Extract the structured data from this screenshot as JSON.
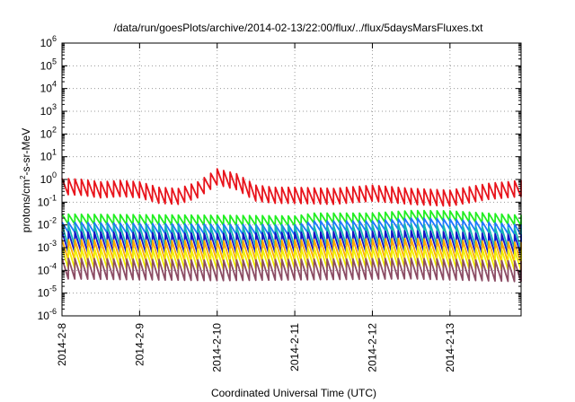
{
  "chart_data": {
    "type": "line",
    "title": "/data/run/goesPlots/archive/2014-02-13/22:00/flux/../flux/5daysMarsFluxes.txt",
    "xlabel": "Coordinated Universal Time (UTC)",
    "ylabel": "protons/cm²-s-sr-MeV",
    "ylabel_parts": {
      "base": "protons/cm",
      "sup": "2",
      "rest": "-s-sr-MeV"
    },
    "yscale": "log",
    "ylim": [
      1e-06,
      1000000.0
    ],
    "y_ticks": [
      {
        "mantissa": "10",
        "exp": "-6"
      },
      {
        "mantissa": "10",
        "exp": "-5"
      },
      {
        "mantissa": "10",
        "exp": "-4"
      },
      {
        "mantissa": "10",
        "exp": "-3"
      },
      {
        "mantissa": "10",
        "exp": "-2"
      },
      {
        "mantissa": "10",
        "exp": "-1"
      },
      {
        "mantissa": "10",
        "exp": "0"
      },
      {
        "mantissa": "10",
        "exp": "1"
      },
      {
        "mantissa": "10",
        "exp": "2"
      },
      {
        "mantissa": "10",
        "exp": "3"
      },
      {
        "mantissa": "10",
        "exp": "4"
      },
      {
        "mantissa": "10",
        "exp": "5"
      },
      {
        "mantissa": "10",
        "exp": "6"
      }
    ],
    "xlim": [
      "2014-02-08",
      "2014-02-13 22:00"
    ],
    "x_ticks": [
      "2014-2-8",
      "2014-2-9",
      "2014-2-10",
      "2014-2-11",
      "2014-2-12",
      "2014-2-13"
    ],
    "grid": true,
    "series": [
      {
        "color": "#e8141c",
        "pattern": "sawtooth",
        "period_hours": 2,
        "x": [
          "2014-02-08 00:00",
          "2014-02-08 06:00",
          "2014-02-08 12:00",
          "2014-02-08 18:00",
          "2014-02-09 00:00",
          "2014-02-09 06:00",
          "2014-02-09 12:00",
          "2014-02-09 18:00",
          "2014-02-10 00:00",
          "2014-02-10 06:00",
          "2014-02-10 12:00",
          "2014-02-10 18:00",
          "2014-02-11 00:00",
          "2014-02-11 12:00",
          "2014-02-12 00:00",
          "2014-02-12 12:00",
          "2014-02-13 00:00",
          "2014-02-13 12:00",
          "2014-02-13 22:00"
        ],
        "y": [
          0.5,
          0.45,
          0.35,
          0.4,
          0.35,
          0.2,
          0.18,
          0.35,
          1.3,
          0.8,
          0.25,
          0.2,
          0.2,
          0.18,
          0.25,
          0.18,
          0.15,
          0.3,
          0.4
        ]
      },
      {
        "color": "#22ee22",
        "pattern": "sawtooth",
        "period_hours": 2,
        "x": [
          "2014-02-08 00:00",
          "2014-02-09 00:00",
          "2014-02-10 00:00",
          "2014-02-11 00:00",
          "2014-02-11 06:00",
          "2014-02-12 00:00",
          "2014-02-12 12:00",
          "2014-02-13 00:00",
          "2014-02-13 22:00"
        ],
        "y": [
          0.018,
          0.017,
          0.016,
          0.015,
          0.02,
          0.02,
          0.026,
          0.025,
          0.016
        ]
      },
      {
        "color": "#1e78ff",
        "pattern": "sawtooth",
        "period_hours": 2,
        "x": [
          "2014-02-08 00:00",
          "2014-02-09 00:00",
          "2014-02-10 00:00",
          "2014-02-11 00:00",
          "2014-02-11 06:00",
          "2014-02-12 00:00",
          "2014-02-12 12:00",
          "2014-02-13 00:00",
          "2014-02-13 22:00"
        ],
        "y": [
          0.008,
          0.007,
          0.0065,
          0.006,
          0.009,
          0.009,
          0.012,
          0.011,
          0.006
        ]
      },
      {
        "color": "#14b4b4",
        "pattern": "sawtooth",
        "period_hours": 2,
        "x": [
          "2014-02-08 00:00",
          "2014-02-10 00:00",
          "2014-02-11 06:00",
          "2014-02-12 12:00",
          "2014-02-13 22:00"
        ],
        "y": [
          0.0035,
          0.003,
          0.0032,
          0.004,
          0.0025
        ]
      },
      {
        "color": "#1414c8",
        "pattern": "sawtooth",
        "period_hours": 2,
        "x": [
          "2014-02-08 00:00",
          "2014-02-10 00:00",
          "2014-02-11 06:00",
          "2014-02-12 12:00",
          "2014-02-13 22:00"
        ],
        "y": [
          0.0018,
          0.0015,
          0.0017,
          0.002,
          0.0013
        ]
      },
      {
        "color": "#ffaa00",
        "pattern": "sawtooth",
        "period_hours": 2,
        "x": [
          "2014-02-08 00:00",
          "2014-02-10 00:00",
          "2014-02-11 06:00",
          "2014-02-12 12:00",
          "2014-02-13 22:00"
        ],
        "y": [
          0.0008,
          0.0007,
          0.0008,
          0.0009,
          0.0006
        ]
      },
      {
        "color": "#f0f000",
        "pattern": "sawtooth",
        "period_hours": 2,
        "x": [
          "2014-02-08 00:00",
          "2014-02-10 00:00",
          "2014-02-11 06:00",
          "2014-02-12 12:00",
          "2014-02-13 22:00"
        ],
        "y": [
          0.00035,
          0.0003,
          0.00035,
          0.0004,
          0.00028
        ]
      },
      {
        "color": "#8c4c64",
        "pattern": "sawtooth",
        "period_hours": 2,
        "x": [
          "2014-02-08 00:00",
          "2014-02-10 00:00",
          "2014-02-11 06:00",
          "2014-02-12 12:00",
          "2014-02-13 22:00"
        ],
        "y": [
          0.00012,
          0.0001,
          0.00011,
          0.00012,
          9e-05
        ]
      }
    ]
  }
}
